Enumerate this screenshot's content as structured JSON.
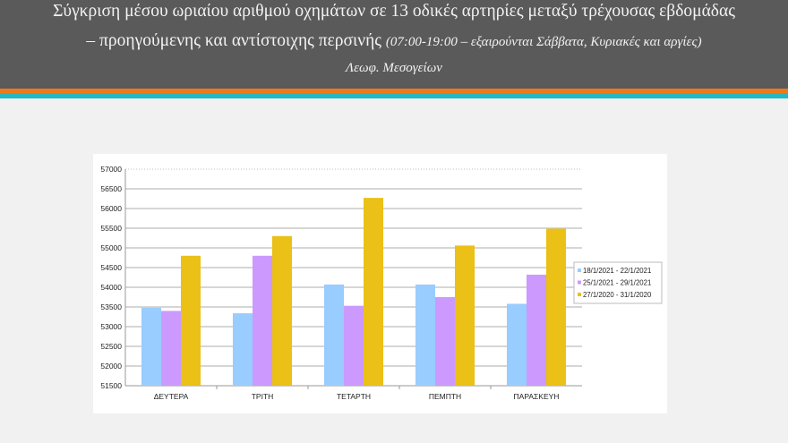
{
  "header": {
    "title_line1": "Σύγκριση μέσου ωριαίου αριθμού οχημάτων σε 13 οδικές αρτηρίες μεταξύ τρέχουσας εβδομάδας",
    "title_line2": "– προηγούμενης και αντίστοιχης περσινής",
    "title_line2_note": "(07:00-19:00 – εξαιρούνται Σάββατα, Κυριακές και αργίες)",
    "subtitle": "Λεωφ. Μεσογείων"
  },
  "colors": {
    "header_bg": "#5a5a5a",
    "stripe_orange": "#ec7a1c",
    "stripe_teal": "#22b8c6"
  },
  "chart_data": {
    "type": "bar",
    "title": "",
    "xlabel": "",
    "ylabel": "",
    "categories": [
      "ΔΕΥΤΕΡΑ",
      "ΤΡΙΤΗ",
      "ΤΕΤΑΡΤΗ",
      "ΠΕΜΠΤΗ",
      "ΠΑΡΑΣΚΕΥΗ"
    ],
    "series": [
      {
        "name": "18/1/2021 - 22/1/2021",
        "color": "#99ccff",
        "values": [
          53480,
          53340,
          54070,
          54070,
          53580
        ]
      },
      {
        "name": "25/1/2021 - 29/1/2021",
        "color": "#cc99ff",
        "values": [
          53400,
          54800,
          53530,
          53750,
          54320
        ]
      },
      {
        "name": "27/1/2020 - 31/1/2020",
        "color": "#ebc017",
        "values": [
          54800,
          55300,
          56270,
          55060,
          55490
        ]
      }
    ],
    "ylim": [
      51500,
      57000
    ],
    "yticks": [
      51500,
      52000,
      52500,
      53000,
      53500,
      54000,
      54500,
      55000,
      55500,
      56000,
      56500,
      57000
    ],
    "grid": true,
    "legend": "right"
  }
}
